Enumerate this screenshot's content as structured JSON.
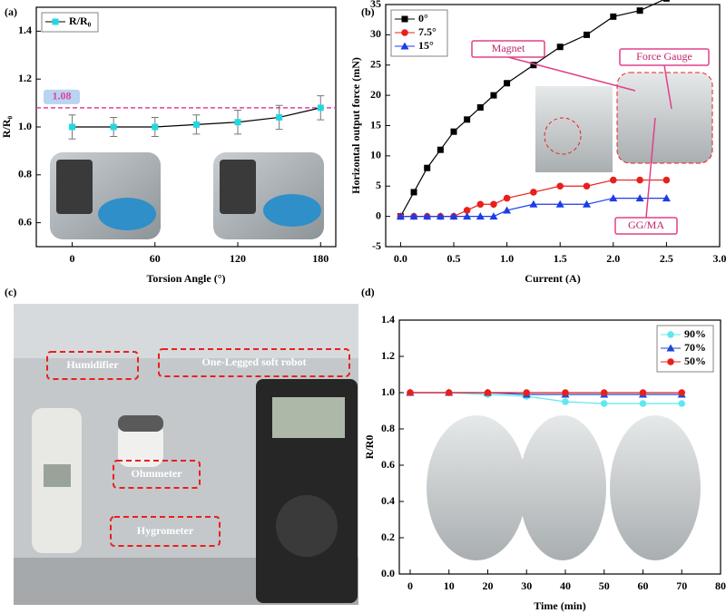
{
  "chart_data": [
    {
      "type": "line",
      "panel_label": "(a)",
      "x_label": "Torsion Angle (°)",
      "y_label": "R/R₀",
      "x": [
        0,
        30,
        60,
        90,
        120,
        150,
        180
      ],
      "xlim": [
        -26,
        191
      ],
      "xticks": [
        0,
        60,
        120,
        180
      ],
      "ylim": [
        0.5,
        1.5
      ],
      "yticks": [
        0.6,
        0.8,
        {
          "value": 1,
          "label": "1.0"
        },
        1.2,
        1.4
      ],
      "legend": "upper left",
      "series": [
        {
          "name": "R/R₀",
          "color": "#22d8e0",
          "line_color": "#000000",
          "marker": "square",
          "values": [
            1.0,
            1.0,
            1.0,
            1.01,
            1.02,
            1.04,
            1.08
          ],
          "errors": [
            0.05,
            0.04,
            0.04,
            0.04,
            0.05,
            0.05,
            0.05
          ]
        }
      ],
      "reference_line": {
        "value": 1.08,
        "label": "1.08",
        "color": "#e040a0"
      }
    },
    {
      "type": "line",
      "panel_label": "(b)",
      "x_label": "Current (A)",
      "y_label": "Horizontal output force (mN)",
      "x": [
        0,
        0.125,
        0.25,
        0.375,
        0.5,
        0.625,
        0.75,
        0.875,
        1.0,
        1.25,
        1.5,
        1.75,
        2.0,
        2.25,
        2.5
      ],
      "xlim": [
        -0.14,
        3.0
      ],
      "xticks": [
        {
          "value": 0,
          "label": "0.0"
        },
        0.5,
        {
          "value": 1,
          "label": "1.0"
        },
        1.5,
        {
          "value": 2,
          "label": "2.0"
        },
        2.5,
        {
          "value": 3,
          "label": "3.0"
        }
      ],
      "ylim": [
        -5,
        35
      ],
      "yticks": [
        -5,
        0,
        5,
        10,
        15,
        20,
        25,
        30,
        35
      ],
      "legend": "upper left",
      "series": [
        {
          "name": "0°",
          "color": "#000000",
          "marker": "square",
          "values": [
            0,
            4,
            8,
            11,
            14,
            16,
            18,
            20,
            22,
            25,
            28,
            30,
            33,
            34,
            36
          ]
        },
        {
          "name": "7.5°",
          "color": "#e8201c",
          "marker": "circle",
          "values": [
            0,
            0,
            0,
            0,
            0,
            1,
            2,
            2,
            3,
            4,
            5,
            5,
            6,
            6,
            6
          ]
        },
        {
          "name": "15°",
          "color": "#1c3ce8",
          "marker": "triangle",
          "values": [
            0,
            0,
            0,
            0,
            0,
            0,
            0,
            0,
            1,
            2,
            2,
            2,
            3,
            3,
            3
          ]
        }
      ],
      "callouts": [
        "Magnet",
        "Force Gauge",
        "GG/MA"
      ]
    },
    {
      "type": "line",
      "panel_label": "(d)",
      "x_label": "Time (min)",
      "y_label": "R/R0",
      "x": [
        0,
        10,
        20,
        30,
        40,
        50,
        60,
        70
      ],
      "xlim": [
        -2.8,
        80
      ],
      "xticks": [
        0,
        10,
        20,
        30,
        40,
        50,
        60,
        70,
        80
      ],
      "ylim": [
        0,
        1.4
      ],
      "yticks": [
        {
          "value": 0,
          "label": "0.0"
        },
        0.2,
        0.4,
        0.6,
        0.8,
        {
          "value": 1,
          "label": "1.0"
        },
        1.2,
        1.4
      ],
      "legend": "upper right",
      "series": [
        {
          "name": "90%",
          "color": "#5fe8f0",
          "marker": "circle",
          "values": [
            1.0,
            1.0,
            0.99,
            0.98,
            0.95,
            0.94,
            0.94,
            0.94
          ]
        },
        {
          "name": "70%",
          "color": "#1c48d8",
          "marker": "triangle",
          "values": [
            1.0,
            1.0,
            1.0,
            0.99,
            0.99,
            0.99,
            0.99,
            0.99
          ]
        },
        {
          "name": "50%",
          "color": "#e8201c",
          "marker": "circle",
          "values": [
            1.0,
            1.0,
            1.0,
            1.0,
            1.0,
            1.0,
            1.0,
            1.0
          ]
        }
      ]
    }
  ],
  "photo": {
    "panel_label": "(c)",
    "labels": [
      "Humidifier",
      "One-Legged soft robot",
      "Ohmmeter",
      "Hygrometer"
    ]
  }
}
